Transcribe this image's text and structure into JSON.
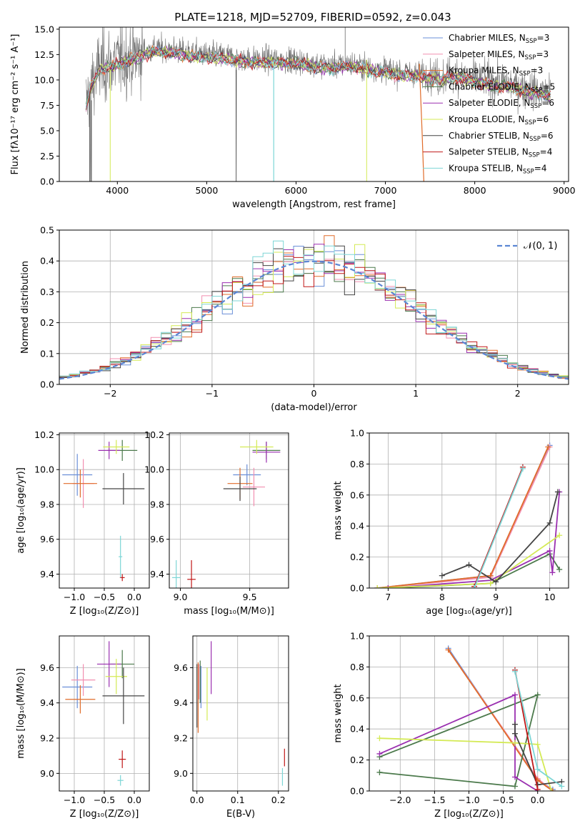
{
  "chart_data": [
    {
      "type": "line",
      "title": "PLATE=1218, MJD=52709, FIBERID=0592, z=0.043",
      "xlabel": "wavelength [Angstrom, rest frame]",
      "ylabel": "Flux [fλ10⁻¹⁷ erg cm⁻² s⁻¹ A⁻¹]",
      "xlim": [
        3350,
        9050
      ],
      "ylim": [
        0,
        15.2
      ],
      "xticks": [
        4000,
        5000,
        6000,
        7000,
        8000,
        9000
      ],
      "yticks": [
        0.0,
        2.5,
        5.0,
        7.5,
        10.0,
        12.5,
        15.0
      ],
      "legend": "top-right",
      "series": [
        {
          "name": "Chabrier MILES, N_SSP=3",
          "color": "#6a8fd8"
        },
        {
          "name": "Salpeter MILES, N_SSP=3",
          "color": "#f28fb0"
        },
        {
          "name": "Kroupa MILES, N_SSP=3",
          "color": "#e06c2a"
        },
        {
          "name": "Chabrier ELODIE, N_SSP=5",
          "color": "#4c7a4c"
        },
        {
          "name": "Salpeter ELODIE, N_SSP=6",
          "color": "#9a2fb0"
        },
        {
          "name": "Kroupa ELODIE, N_SSP=6",
          "color": "#d4ea55"
        },
        {
          "name": "Chabrier STELIB, N_SSP=6",
          "color": "#444444"
        },
        {
          "name": "Salpeter STELIB, N_SSP=4",
          "color": "#c01818"
        },
        {
          "name": "Kroupa STELIB, N_SSP=4",
          "color": "#7dd6d6"
        }
      ],
      "model_envelope": {
        "x": [
          3650,
          3700,
          3800,
          3900,
          4000,
          4100,
          4200,
          4300,
          4400,
          4500,
          4600,
          4800,
          5000,
          5200,
          5400,
          5600,
          5800,
          6000,
          6200,
          6400,
          6600,
          6800,
          7000,
          7200,
          7400,
          7600,
          7800,
          8000,
          8200,
          8400,
          8600,
          8800
        ],
        "y": [
          7.6,
          9.5,
          11.2,
          11.5,
          11.8,
          12.2,
          12.4,
          12.8,
          13.1,
          13.0,
          13.0,
          12.7,
          12.5,
          12.4,
          12.1,
          12.0,
          12.0,
          11.9,
          11.6,
          11.4,
          11.6,
          11.3,
          11.0,
          10.8,
          10.6,
          10.3,
          10.6,
          10.1,
          9.8,
          9.6,
          9.1,
          8.8
        ]
      }
    },
    {
      "type": "bar",
      "xlabel": "(data-model)/error",
      "ylabel": "Normed distribution",
      "xlim": [
        -2.5,
        2.5
      ],
      "ylim": [
        0,
        0.5
      ],
      "xticks": [
        -2,
        -1,
        0,
        1,
        2
      ],
      "yticks": [
        0.0,
        0.1,
        0.2,
        0.3,
        0.4,
        0.5
      ],
      "legend": "top-right",
      "reference_label": "𝒩(0, 1)",
      "reference_color": "#5b86d4",
      "bin_width": 0.1
    },
    {
      "type": "scatter",
      "xlabel": "Z [log₁₀(Z/Z⊙)]",
      "ylabel": "age  [log₁₀(age/yr)]",
      "xlim": [
        -1.25,
        0.25
      ],
      "ylim": [
        9.32,
        10.21
      ],
      "xticks": [
        -1.0,
        -0.5,
        0.0
      ],
      "yticks": [
        9.4,
        9.6,
        9.8,
        10.0,
        10.2
      ],
      "points": [
        {
          "series": 0,
          "x": -0.95,
          "y": 9.97,
          "xerr": 0.25,
          "yerr": 0.12
        },
        {
          "series": 1,
          "x": -0.85,
          "y": 9.92,
          "xerr": 0.18,
          "yerr": 0.14
        },
        {
          "series": 2,
          "x": -0.9,
          "y": 9.92,
          "xerr": 0.28,
          "yerr": 0.08
        },
        {
          "series": 3,
          "x": -0.2,
          "y": 10.11,
          "xerr": 0.25,
          "yerr": 0.06
        },
        {
          "series": 4,
          "x": -0.42,
          "y": 10.11,
          "xerr": 0.18,
          "yerr": 0.05
        },
        {
          "series": 5,
          "x": -0.3,
          "y": 10.13,
          "xerr": 0.22,
          "yerr": 0.04
        },
        {
          "series": 6,
          "x": -0.18,
          "y": 9.89,
          "xerr": 0.35,
          "yerr": 0.09
        },
        {
          "series": 7,
          "x": -0.2,
          "y": 9.38,
          "xerr": 0.04,
          "yerr": 0.02
        },
        {
          "series": 8,
          "x": -0.23,
          "y": 9.5,
          "xerr": 0.03,
          "yerr": 0.12
        }
      ]
    },
    {
      "type": "scatter",
      "xlabel": "mass [log₁₀(M/M⊙)]",
      "xlim": [
        8.92,
        9.78
      ],
      "ylim": [
        9.32,
        10.21
      ],
      "xticks": [
        9.0,
        9.5
      ],
      "yticks": [
        9.4,
        9.6,
        9.8,
        10.0,
        10.2
      ],
      "points": [
        {
          "series": 0,
          "x": 9.48,
          "y": 9.97,
          "xerr": 0.1,
          "yerr": 0.06
        },
        {
          "series": 1,
          "x": 9.53,
          "y": 9.9,
          "xerr": 0.08,
          "yerr": 0.11
        },
        {
          "series": 2,
          "x": 9.43,
          "y": 9.92,
          "xerr": 0.09,
          "yerr": 0.09
        },
        {
          "series": 3,
          "x": 9.62,
          "y": 10.11,
          "xerr": 0.1,
          "yerr": 0.05
        },
        {
          "series": 4,
          "x": 9.62,
          "y": 10.1,
          "xerr": 0.1,
          "yerr": 0.06
        },
        {
          "series": 5,
          "x": 9.55,
          "y": 10.13,
          "xerr": 0.12,
          "yerr": 0.04
        },
        {
          "series": 6,
          "x": 9.43,
          "y": 9.89,
          "xerr": 0.12,
          "yerr": 0.07
        },
        {
          "series": 7,
          "x": 9.08,
          "y": 9.37,
          "xerr": 0.03,
          "yerr": 0.11
        },
        {
          "series": 8,
          "x": 8.97,
          "y": 9.38,
          "xerr": 0.03,
          "yerr": 0.1
        }
      ]
    },
    {
      "type": "line",
      "xlabel": "age  [log₁₀(age/yr)]",
      "ylabel": "mass weight",
      "xlim": [
        6.65,
        10.35
      ],
      "ylim": [
        0,
        1.0
      ],
      "xticks": [
        7,
        8,
        9,
        10
      ],
      "yticks": [
        0.0,
        0.2,
        0.4,
        0.6,
        0.8,
        1.0
      ],
      "series": [
        {
          "series": 0,
          "x": [
            6.8,
            8.9,
            10.0
          ],
          "y": [
            0.0,
            0.08,
            0.92
          ]
        },
        {
          "series": 1,
          "x": [
            6.8,
            8.9,
            10.0
          ],
          "y": [
            0.0,
            0.07,
            0.91
          ]
        },
        {
          "series": 2,
          "x": [
            6.8,
            8.9,
            9.97
          ],
          "y": [
            0.0,
            0.08,
            0.91
          ]
        },
        {
          "series": 3,
          "x": [
            7.0,
            8.9,
            10.0,
            10.18
          ],
          "y": [
            0.0,
            0.03,
            0.22,
            0.12
          ]
        },
        {
          "series": 4,
          "x": [
            7.0,
            8.9,
            10.0,
            10.05,
            10.18
          ],
          "y": [
            0.0,
            0.05,
            0.24,
            0.1,
            0.62
          ]
        },
        {
          "series": 5,
          "x": [
            6.8,
            8.9,
            10.18
          ],
          "y": [
            0.0,
            0.03,
            0.34
          ]
        },
        {
          "series": 6,
          "x": [
            8.0,
            8.5,
            9.0,
            10.0,
            10.15
          ],
          "y": [
            0.08,
            0.15,
            0.04,
            0.42,
            0.62
          ]
        },
        {
          "series": 7,
          "x": [
            8.6,
            9.5
          ],
          "y": [
            0.01,
            0.78
          ]
        },
        {
          "series": 8,
          "x": [
            8.6,
            9.5
          ],
          "y": [
            0.0,
            0.77
          ]
        }
      ]
    },
    {
      "type": "scatter",
      "xlabel": "Z [log₁₀(Z/Z⊙)]",
      "ylabel": "mass [log₁₀(M/M⊙)]",
      "xlim": [
        -1.25,
        0.25
      ],
      "ylim": [
        8.9,
        9.78
      ],
      "xticks": [
        -1.0,
        -0.5,
        0.0
      ],
      "yticks": [
        9.0,
        9.2,
        9.4,
        9.6
      ],
      "points": [
        {
          "series": 0,
          "x": -0.95,
          "y": 9.49,
          "xerr": 0.25,
          "yerr": 0.12
        },
        {
          "series": 1,
          "x": -0.85,
          "y": 9.53,
          "xerr": 0.2,
          "yerr": 0.09
        },
        {
          "series": 2,
          "x": -0.9,
          "y": 9.42,
          "xerr": 0.25,
          "yerr": 0.08
        },
        {
          "series": 3,
          "x": -0.2,
          "y": 9.62,
          "xerr": 0.2,
          "yerr": 0.08
        },
        {
          "series": 4,
          "x": -0.42,
          "y": 9.62,
          "xerr": 0.2,
          "yerr": 0.13
        },
        {
          "series": 5,
          "x": -0.3,
          "y": 9.55,
          "xerr": 0.18,
          "yerr": 0.1
        },
        {
          "series": 6,
          "x": -0.18,
          "y": 9.44,
          "xerr": 0.35,
          "yerr": 0.16
        },
        {
          "series": 7,
          "x": -0.2,
          "y": 9.08,
          "xerr": 0.06,
          "yerr": 0.05
        },
        {
          "series": 8,
          "x": -0.23,
          "y": 8.96,
          "xerr": 0.05,
          "yerr": 0.03
        }
      ]
    },
    {
      "type": "scatter",
      "xlabel": "E(B-V)",
      "xlim": [
        -0.01,
        0.225
      ],
      "ylim": [
        8.9,
        9.78
      ],
      "xticks": [
        0.0,
        0.1,
        0.2
      ],
      "yticks": [
        9.0,
        9.2,
        9.4,
        9.6
      ],
      "points": [
        {
          "series": 0,
          "x": 0.01,
          "y": 9.49,
          "xerr": 0,
          "yerr": 0.12
        },
        {
          "series": 1,
          "x": 0.005,
          "y": 9.52,
          "xerr": 0,
          "yerr": 0.1
        },
        {
          "series": 2,
          "x": 0.003,
          "y": 9.43,
          "xerr": 0,
          "yerr": 0.2
        },
        {
          "series": 3,
          "x": 0.008,
          "y": 9.52,
          "xerr": 0,
          "yerr": 0.12
        },
        {
          "series": 4,
          "x": 0.035,
          "y": 9.6,
          "xerr": 0,
          "yerr": 0.15
        },
        {
          "series": 5,
          "x": 0.025,
          "y": 9.45,
          "xerr": 0,
          "yerr": 0.15
        },
        {
          "series": 6,
          "x": 0.0,
          "y": 9.44,
          "xerr": 0,
          "yerr": 0.18
        },
        {
          "series": 7,
          "x": 0.215,
          "y": 9.09,
          "xerr": 0,
          "yerr": 0.05
        },
        {
          "series": 8,
          "x": 0.21,
          "y": 8.98,
          "xerr": 0,
          "yerr": 0.05
        }
      ]
    },
    {
      "type": "line",
      "xlabel": "Z [log₁₀(Z/Z⊙)]",
      "ylabel": "mass weight",
      "xlim": [
        -2.45,
        0.45
      ],
      "ylim": [
        0,
        1.0
      ],
      "xticks": [
        -2.0,
        -1.5,
        -1.0,
        -0.5,
        0.0
      ],
      "yticks": [
        0.0,
        0.2,
        0.4,
        0.6,
        0.8,
        1.0
      ],
      "series": [
        {
          "series": 0,
          "x": [
            -1.3,
            0.0,
            0.22
          ],
          "y": [
            0.92,
            0.07,
            0.01
          ]
        },
        {
          "series": 1,
          "x": [
            -1.3,
            0.0,
            0.22
          ],
          "y": [
            0.91,
            0.08,
            0.0
          ]
        },
        {
          "series": 2,
          "x": [
            -1.3,
            0.0,
            0.22
          ],
          "y": [
            0.91,
            0.07,
            0.0
          ]
        },
        {
          "series": 3,
          "x": [
            -2.3,
            -0.33,
            0.0,
            -2.3
          ],
          "y": [
            0.12,
            0.03,
            0.62,
            0.22
          ]
        },
        {
          "series": 4,
          "x": [
            -2.3,
            -0.33,
            -0.33,
            0.0
          ],
          "y": [
            0.24,
            0.62,
            0.09,
            0.0
          ]
        },
        {
          "series": 5,
          "x": [
            -2.3,
            -0.33,
            0.0,
            0.2
          ],
          "y": [
            0.34,
            0.31,
            0.3,
            0.0
          ]
        },
        {
          "series": 6,
          "x": [
            -0.33,
            -0.33,
            0.0,
            0.35
          ],
          "y": [
            0.43,
            0.37,
            0.04,
            0.06
          ]
        },
        {
          "series": 7,
          "x": [
            -0.33,
            0.0
          ],
          "y": [
            0.78,
            0.01
          ]
        },
        {
          "series": 8,
          "x": [
            -0.33,
            0.0,
            0.35
          ],
          "y": [
            0.77,
            0.14,
            0.03
          ]
        }
      ]
    }
  ]
}
